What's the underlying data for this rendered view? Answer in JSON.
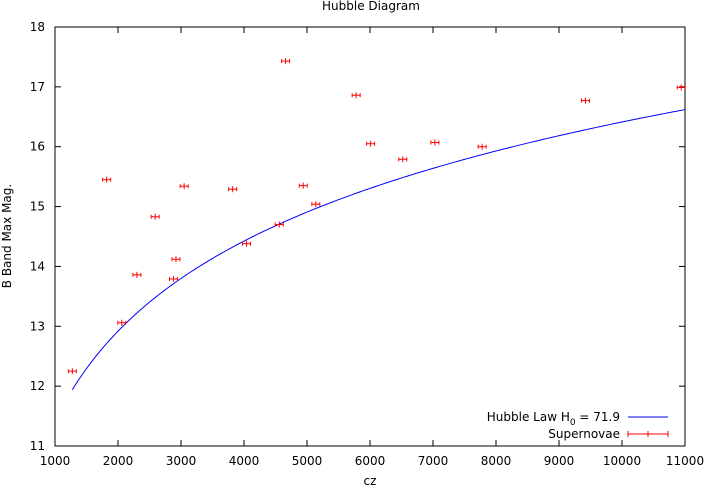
{
  "chart_data": {
    "type": "scatter",
    "title": "Hubble Diagram",
    "xlabel": "cz",
    "ylabel": "B Band Max Mag.",
    "xlim": [
      1000,
      11000
    ],
    "ylim": [
      11,
      18
    ],
    "x_ticks": [
      1000,
      2000,
      3000,
      4000,
      5000,
      6000,
      7000,
      8000,
      9000,
      10000,
      11000
    ],
    "y_ticks": [
      11,
      12,
      13,
      14,
      15,
      16,
      17,
      18
    ],
    "grid": false,
    "legend_position": "bottom-right",
    "legend": {
      "fit_prefix": "Hubble Law H",
      "fit_subscript": "0",
      "fit_suffix": " = 71.9",
      "points_label": "Supernovae"
    },
    "fit": {
      "H0": 71.9,
      "form": "m = 5*log10(cz/H0) + const",
      "x_range": [
        1275,
        11000
      ],
      "color": "#0000ff"
    },
    "series": [
      {
        "name": "Supernovae",
        "color": "#ff0000",
        "marker": "+ with horizontal error bars",
        "x": [
          1275,
          1820,
          2060,
          2300,
          2590,
          2880,
          2920,
          3050,
          3820,
          4040,
          4560,
          4660,
          4940,
          5140,
          5780,
          6010,
          6520,
          7030,
          7780,
          9420,
          10940
        ],
        "y": [
          12.25,
          15.45,
          13.06,
          13.86,
          14.83,
          13.79,
          14.12,
          15.34,
          15.29,
          14.38,
          14.7,
          17.43,
          15.35,
          15.04,
          16.86,
          16.05,
          15.79,
          16.07,
          16.0,
          16.77,
          16.99
        ]
      }
    ]
  }
}
